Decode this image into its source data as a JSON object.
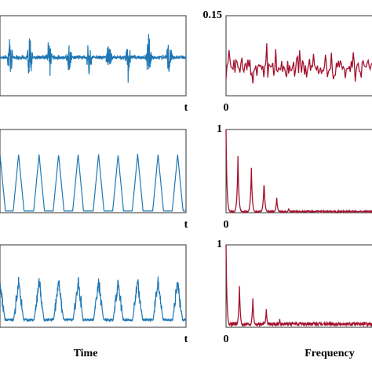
{
  "figure": {
    "xlabel_left": "Time",
    "xlabel_right": "Frequency"
  },
  "chart_data": [
    {
      "type": "line",
      "panel": "time-top",
      "x_end_label": "t",
      "color": "#1f77b4",
      "description_values": {
        "baseline": 0.48,
        "baseline_noise": 0.07,
        "burst_centers": [
          0.055,
          0.16,
          0.265,
          0.37,
          0.48,
          0.585,
          0.69,
          0.8,
          0.91
        ],
        "burst_amplitude": 0.42
      }
    },
    {
      "type": "line",
      "panel": "time-middle",
      "x_end_label": "t",
      "color": "#1f77b4",
      "description_values": {
        "baseline": 0.02,
        "pulse_peak": 0.7,
        "pulse_centers": [
          0.0,
          0.1,
          0.21,
          0.315,
          0.42,
          0.53,
          0.635,
          0.74,
          0.85,
          0.955
        ]
      }
    },
    {
      "type": "line",
      "panel": "time-bottom",
      "x_end_label": "t",
      "color": "#1f77b4",
      "description_values": {
        "baseline": 0.08,
        "pulse_peak": 0.55,
        "noise": 0.12,
        "pulse_centers": [
          0.0,
          0.1,
          0.21,
          0.315,
          0.42,
          0.53,
          0.635,
          0.74,
          0.85,
          0.955
        ]
      }
    },
    {
      "type": "line",
      "panel": "freq-top",
      "x_start_label": "0",
      "y_top_label": "0.15",
      "color": "#a3112e",
      "description_values": {
        "mean": 0.35,
        "spread": 0.22
      }
    },
    {
      "type": "line",
      "panel": "freq-middle",
      "x_start_label": "0",
      "y_top_label": "1",
      "color": "#a3112e",
      "description_values": {
        "peaks": [
          {
            "f": 0.0,
            "a": 1.0
          },
          {
            "f": 0.08,
            "a": 0.68
          },
          {
            "f": 0.17,
            "a": 0.54
          },
          {
            "f": 0.255,
            "a": 0.38
          },
          {
            "f": 0.34,
            "a": 0.18
          },
          {
            "f": 0.42,
            "a": 0.05
          }
        ]
      }
    },
    {
      "type": "line",
      "panel": "freq-bottom",
      "x_start_label": "0",
      "y_top_label": "1",
      "color": "#a3112e",
      "description_values": {
        "peaks": [
          {
            "f": 0.0,
            "a": 1.0
          },
          {
            "f": 0.09,
            "a": 0.5
          },
          {
            "f": 0.18,
            "a": 0.35
          },
          {
            "f": 0.27,
            "a": 0.22
          },
          {
            "f": 0.36,
            "a": 0.1
          }
        ],
        "noise_floor": 0.04
      }
    }
  ]
}
